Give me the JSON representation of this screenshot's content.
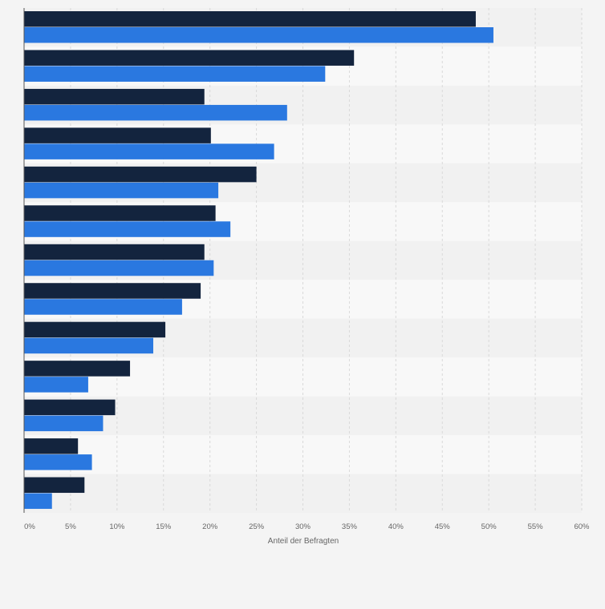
{
  "chart_data": {
    "type": "bar",
    "orientation": "horizontal",
    "categories": [
      "",
      "",
      "",
      "",
      "",
      "",
      "",
      "",
      "",
      "",
      "",
      "",
      ""
    ],
    "series": [
      {
        "color": "#13243e",
        "values": [
          48.6,
          35.5,
          19.4,
          20.1,
          25.0,
          20.6,
          19.4,
          19.0,
          15.2,
          11.4,
          9.8,
          5.8,
          6.5
        ]
      },
      {
        "color": "#2a78e0",
        "values": [
          50.5,
          32.4,
          28.3,
          26.9,
          20.9,
          22.2,
          20.4,
          17.0,
          13.9,
          6.9,
          8.5,
          7.3,
          3.0
        ]
      }
    ],
    "xlim": [
      0,
      60
    ],
    "xticks": [
      0,
      5,
      10,
      15,
      20,
      25,
      30,
      35,
      40,
      45,
      50,
      55,
      60
    ],
    "tick_labels": [
      "0%",
      "5%",
      "10%",
      "15%",
      "20%",
      "25%",
      "30%",
      "35%",
      "40%",
      "45%",
      "50%",
      "55%",
      "60%"
    ],
    "xlabel": "Anteil der Befragten",
    "grid": true,
    "legend": "none"
  }
}
